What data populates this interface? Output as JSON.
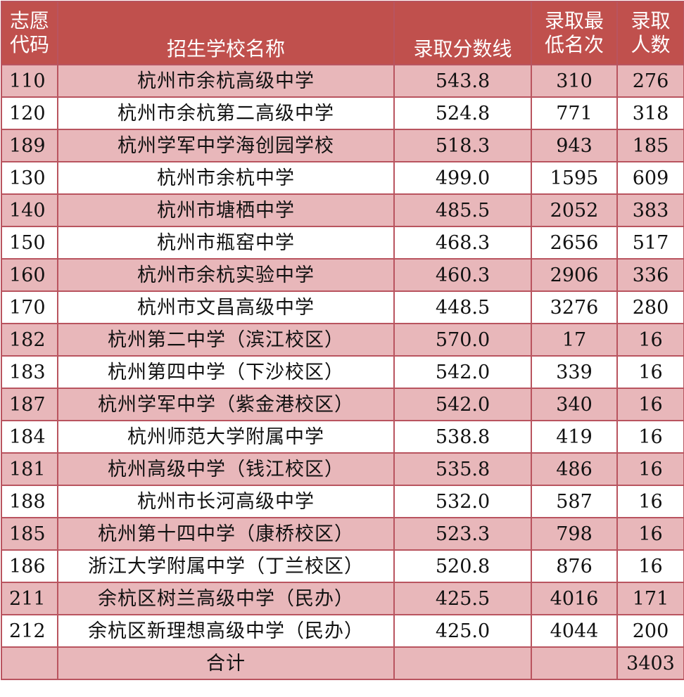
{
  "headers": {
    "code": [
      "志愿",
      "代码"
    ],
    "school": "招生学校名称",
    "score": "录取分数线",
    "rank": [
      "录取最",
      "低名次"
    ],
    "count": [
      "录取",
      "人数"
    ]
  },
  "rows": [
    {
      "code": "110",
      "school": "杭州市余杭高级中学",
      "score": "543.8",
      "rank": "310",
      "count": "276"
    },
    {
      "code": "120",
      "school": "杭州市余杭第二高级中学",
      "score": "524.8",
      "rank": "771",
      "count": "318"
    },
    {
      "code": "189",
      "school": "杭州学军中学海创园学校",
      "score": "518.3",
      "rank": "943",
      "count": "185"
    },
    {
      "code": "130",
      "school": "杭州市余杭中学",
      "score": "499.0",
      "rank": "1595",
      "count": "609"
    },
    {
      "code": "140",
      "school": "杭州市塘栖中学",
      "score": "485.5",
      "rank": "2052",
      "count": "383"
    },
    {
      "code": "150",
      "school": "杭州市瓶窑中学",
      "score": "468.3",
      "rank": "2656",
      "count": "517"
    },
    {
      "code": "160",
      "school": "杭州市余杭实验中学",
      "score": "460.3",
      "rank": "2906",
      "count": "336"
    },
    {
      "code": "170",
      "school": "杭州市文昌高级中学",
      "score": "448.5",
      "rank": "3276",
      "count": "280"
    },
    {
      "code": "182",
      "school": "杭州第二中学（滨江校区）",
      "score": "570.0",
      "rank": "17",
      "count": "16"
    },
    {
      "code": "183",
      "school": "杭州第四中学（下沙校区）",
      "score": "542.0",
      "rank": "339",
      "count": "16"
    },
    {
      "code": "187",
      "school": "杭州学军中学（紫金港校区）",
      "score": "542.0",
      "rank": "340",
      "count": "16"
    },
    {
      "code": "184",
      "school": "杭州师范大学附属中学",
      "score": "538.8",
      "rank": "419",
      "count": "16"
    },
    {
      "code": "181",
      "school": "杭州高级中学（钱江校区）",
      "score": "535.8",
      "rank": "486",
      "count": "16"
    },
    {
      "code": "188",
      "school": "杭州市长河高级中学",
      "score": "532.0",
      "rank": "587",
      "count": "16"
    },
    {
      "code": "185",
      "school": "杭州第十四中学（康桥校区）",
      "score": "523.3",
      "rank": "798",
      "count": "16"
    },
    {
      "code": "186",
      "school": "浙江大学附属中学（丁兰校区）",
      "score": "520.8",
      "rank": "876",
      "count": "16"
    },
    {
      "code": "211",
      "school": "余杭区树兰高级中学（民办）",
      "score": "425.5",
      "rank": "4016",
      "count": "171"
    },
    {
      "code": "212",
      "school": "余杭区新理想高级中学（民办）",
      "score": "425.0",
      "rank": "4044",
      "count": "200"
    }
  ],
  "total": {
    "label": "合计",
    "count": "3403"
  },
  "colors": {
    "header_bg": "#c0504d",
    "row_pink": "#e8b7ba",
    "row_white": "#ffffff",
    "border": "#b9545f"
  }
}
